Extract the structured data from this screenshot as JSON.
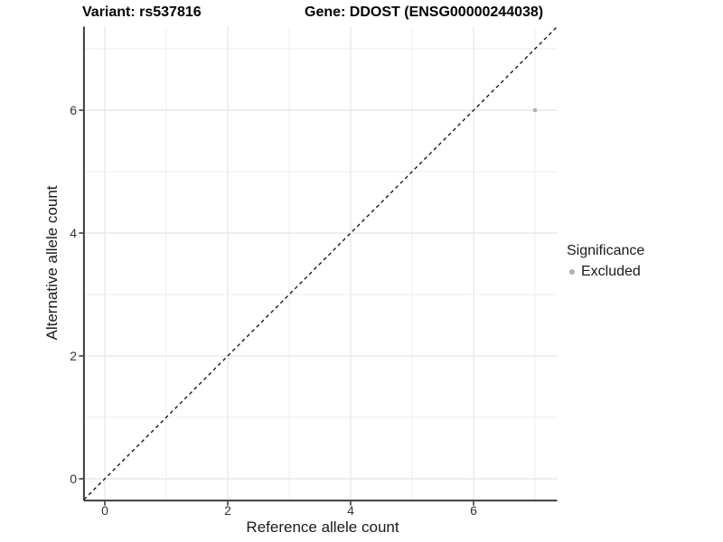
{
  "chart_data": {
    "type": "scatter",
    "title_left": "Variant: rs537816",
    "title_right": "Gene: DDOST (ENSG00000244038)",
    "xlabel": "Reference allele count",
    "ylabel": "Alternative allele count",
    "xlim": [
      -0.34,
      7.36
    ],
    "ylim": [
      -0.34,
      7.36
    ],
    "x_major_ticks": [
      0,
      2,
      4,
      6
    ],
    "y_major_ticks": [
      0,
      2,
      4,
      6
    ],
    "x_minor_ticks": [
      1,
      3,
      5,
      7
    ],
    "y_minor_ticks": [
      1,
      3,
      5,
      7
    ],
    "grid": true,
    "identity_line": {
      "style": "dashed",
      "slope": 1,
      "intercept": 0
    },
    "series": [
      {
        "name": "Excluded",
        "color": "#b0b0b0",
        "points": [
          {
            "x": 7,
            "y": 6
          }
        ]
      }
    ],
    "legend": {
      "title": "Significance",
      "position": "right",
      "entries": [
        {
          "label": "Excluded",
          "color": "#b0b0b0"
        }
      ]
    },
    "colors": {
      "grid_major": "#e4e4e4",
      "grid_minor": "#eeeeee",
      "axis": "#3c3c3c",
      "dashed_line": "#0a0a0a",
      "point": "#b0b0b0"
    }
  }
}
